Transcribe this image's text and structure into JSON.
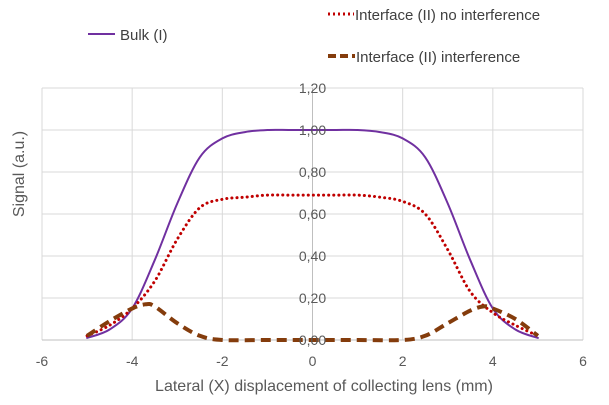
{
  "chart_data": {
    "type": "line",
    "title": "",
    "xlabel": "Lateral (X) displacement of collecting lens (mm)",
    "ylabel": "Signal (a.u.)",
    "xlim": [
      -6,
      6
    ],
    "ylim": [
      0,
      1.2
    ],
    "x_ticks": [
      "-6",
      "-4",
      "-2",
      "0",
      "2",
      "4",
      "6"
    ],
    "y_ticks": [
      "0,00",
      "0,20",
      "0,40",
      "0,60",
      "0,80",
      "1,00",
      "1,20"
    ],
    "grid": "vertical and horizontal gridlines",
    "legend_placement": "top",
    "series": [
      {
        "name": "Bulk (I)",
        "style": "solid",
        "color": "#7030a0",
        "x": [
          -5.0,
          -4.5,
          -4.0,
          -3.5,
          -3.0,
          -2.5,
          -2.0,
          -1.5,
          -1.0,
          -0.5,
          0.0,
          0.5,
          1.0,
          1.5,
          2.0,
          2.5,
          3.0,
          3.5,
          4.0,
          4.5,
          5.0
        ],
        "y": [
          0.01,
          0.05,
          0.15,
          0.38,
          0.65,
          0.87,
          0.96,
          0.99,
          1.0,
          1.0,
          1.0,
          1.0,
          1.0,
          0.99,
          0.96,
          0.87,
          0.65,
          0.38,
          0.15,
          0.05,
          0.01
        ]
      },
      {
        "name": "Interface (II) no interference",
        "style": "dotted",
        "color": "#c00000",
        "x": [
          -5.0,
          -4.5,
          -4.0,
          -3.5,
          -3.0,
          -2.5,
          -2.0,
          -1.5,
          -1.0,
          -0.5,
          0.0,
          0.5,
          1.0,
          1.5,
          2.0,
          2.5,
          3.0,
          3.5,
          4.0,
          4.5,
          5.0
        ],
        "y": [
          0.02,
          0.07,
          0.15,
          0.28,
          0.48,
          0.63,
          0.67,
          0.68,
          0.69,
          0.69,
          0.69,
          0.69,
          0.69,
          0.68,
          0.66,
          0.6,
          0.43,
          0.23,
          0.13,
          0.07,
          0.02
        ]
      },
      {
        "name": "Interface (II) interference",
        "style": "dashed",
        "color": "#843c0c",
        "x": [
          -5.0,
          -4.5,
          -4.0,
          -3.7,
          -3.5,
          -3.0,
          -2.5,
          -2.0,
          -1.0,
          0.0,
          1.0,
          2.0,
          2.5,
          3.0,
          3.5,
          3.8,
          4.0,
          4.5,
          5.0
        ],
        "y": [
          0.02,
          0.09,
          0.15,
          0.17,
          0.16,
          0.08,
          0.02,
          0.0,
          0.0,
          0.0,
          0.0,
          0.0,
          0.02,
          0.08,
          0.14,
          0.16,
          0.15,
          0.1,
          0.02
        ]
      }
    ]
  }
}
